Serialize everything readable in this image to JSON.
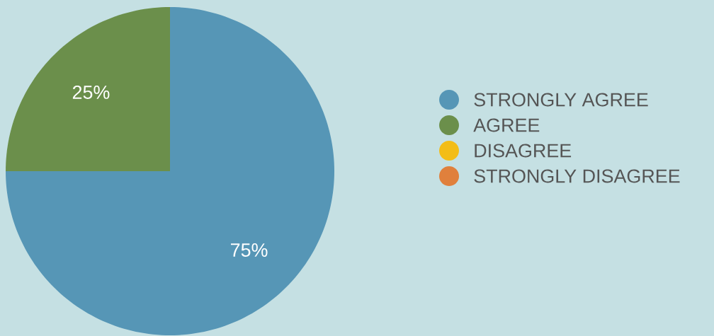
{
  "chart_data": {
    "type": "pie",
    "categories": [
      "STRONGLY AGREE",
      "AGREE",
      "DISAGREE",
      "STRONGLY DISAGREE"
    ],
    "values": [
      75,
      25,
      0,
      0
    ],
    "colors": [
      "#5696b6",
      "#6b8f4b",
      "#f3bd17",
      "#e0803c"
    ],
    "value_labels": [
      "75%",
      "25%",
      null,
      null
    ],
    "legend": "right"
  }
}
